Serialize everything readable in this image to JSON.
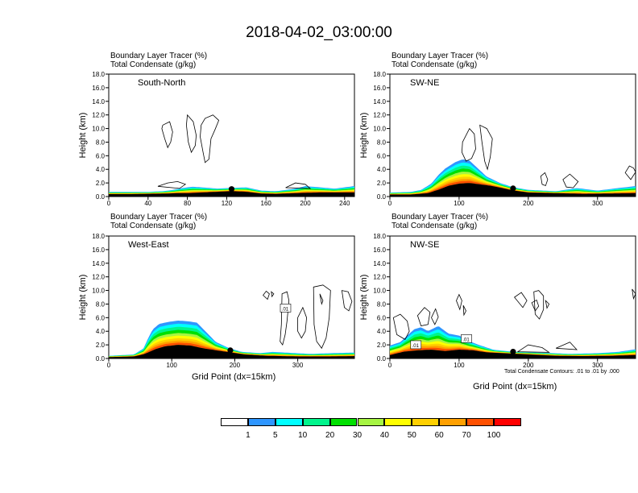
{
  "title": "2018-04-02_03:00:00",
  "header_line1": "Boundary Layer Tracer   (%)",
  "header_line2": "Total Condensate   (g/kg)",
  "ylabel": "Height (km)",
  "xlabel": "Grid Point (dx=15km)",
  "contour_note": "Total Condensate Contours: .01 to .01 by .000",
  "colorbar": {
    "labels": [
      "1",
      "5",
      "10",
      "20",
      "30",
      "40",
      "50",
      "60",
      "70",
      "100"
    ],
    "colors": [
      "#ffffff",
      "#2e96ff",
      "#00ffff",
      "#00f58c",
      "#00e000",
      "#a6f542",
      "#ffff00",
      "#ffd000",
      "#ffa000",
      "#ff5000",
      "#ff0000"
    ]
  },
  "chart_data": [
    {
      "type": "heatmap",
      "label": "South-North",
      "xlim": [
        0,
        250
      ],
      "ylim": [
        0,
        18
      ],
      "xticks": [
        0,
        40,
        80,
        120,
        160,
        200,
        240
      ],
      "yticks": [
        "0.0",
        "2.0",
        "4.0",
        "6.0",
        "8.0",
        "10.0",
        "12.0",
        "14.0",
        "16.0",
        "18.0"
      ],
      "marker_x": 125,
      "terrain": [
        [
          0,
          0.35
        ],
        [
          20,
          0.35
        ],
        [
          40,
          0.4
        ],
        [
          60,
          0.45
        ],
        [
          70,
          0.5
        ],
        [
          80,
          0.5
        ],
        [
          95,
          0.6
        ],
        [
          110,
          0.7
        ],
        [
          125,
          0.8
        ],
        [
          140,
          0.7
        ],
        [
          155,
          0.45
        ],
        [
          170,
          0.4
        ],
        [
          180,
          0.45
        ],
        [
          190,
          0.5
        ],
        [
          200,
          0.55
        ],
        [
          215,
          0.6
        ],
        [
          230,
          0.6
        ],
        [
          250,
          0.6
        ]
      ],
      "tracer_top": [
        [
          0,
          0.7
        ],
        [
          20,
          0.7
        ],
        [
          40,
          0.7
        ],
        [
          55,
          0.8
        ],
        [
          65,
          1.0
        ],
        [
          75,
          1.3
        ],
        [
          85,
          1.5
        ],
        [
          95,
          1.4
        ],
        [
          110,
          1.2
        ],
        [
          125,
          1.3
        ],
        [
          140,
          1.4
        ],
        [
          155,
          0.9
        ],
        [
          170,
          0.8
        ],
        [
          180,
          1.0
        ],
        [
          190,
          1.2
        ],
        [
          200,
          1.6
        ],
        [
          215,
          1.4
        ],
        [
          230,
          1.2
        ],
        [
          250,
          1.6
        ]
      ],
      "clouds": [
        [
          [
            55,
            10.5
          ],
          [
            62,
            11.0
          ],
          [
            65,
            9.5
          ],
          [
            63,
            8.0
          ],
          [
            60,
            7.2
          ],
          [
            57,
            8.5
          ],
          [
            54,
            10.0
          ]
        ],
        [
          [
            80,
            12
          ],
          [
            86,
            11
          ],
          [
            89,
            9
          ],
          [
            88,
            7.5
          ],
          [
            84,
            6.5
          ],
          [
            81,
            8
          ],
          [
            79,
            10.5
          ]
        ],
        [
          [
            94,
            10.5
          ],
          [
            98,
            11.5
          ],
          [
            106,
            12
          ],
          [
            112,
            11.2
          ],
          [
            108,
            9.8
          ],
          [
            104,
            8.5
          ],
          [
            102,
            5.5
          ],
          [
            98,
            5.0
          ],
          [
            96,
            6.5
          ],
          [
            93,
            8.8
          ]
        ],
        [
          [
            50,
            1.5
          ],
          [
            60,
            2.0
          ],
          [
            70,
            2.2
          ],
          [
            78,
            1.8
          ],
          [
            72,
            1.2
          ]
        ],
        [
          [
            180,
            1.3
          ],
          [
            190,
            2.0
          ],
          [
            200,
            1.8
          ],
          [
            205,
            1.2
          ]
        ]
      ]
    },
    {
      "type": "heatmap",
      "label": "SW-NE",
      "xlim": [
        0,
        355
      ],
      "ylim": [
        0,
        18
      ],
      "xticks": [
        0,
        100,
        200,
        300
      ],
      "yticks": [
        "0.0",
        "2.0",
        "4.0",
        "6.0",
        "8.0",
        "10.0",
        "12.0",
        "14.0",
        "16.0",
        "18.0"
      ],
      "marker_x": 178,
      "terrain": [
        [
          0,
          0.3
        ],
        [
          30,
          0.3
        ],
        [
          55,
          0.5
        ],
        [
          70,
          1.0
        ],
        [
          85,
          1.6
        ],
        [
          100,
          1.9
        ],
        [
          115,
          2.0
        ],
        [
          130,
          1.8
        ],
        [
          145,
          1.6
        ],
        [
          160,
          1.3
        ],
        [
          178,
          0.9
        ],
        [
          200,
          0.6
        ],
        [
          240,
          0.5
        ],
        [
          280,
          0.4
        ],
        [
          320,
          0.45
        ],
        [
          355,
          0.5
        ]
      ],
      "tracer_top": [
        [
          0,
          0.6
        ],
        [
          30,
          0.7
        ],
        [
          45,
          1.0
        ],
        [
          60,
          2.0
        ],
        [
          70,
          3.3
        ],
        [
          80,
          4.3
        ],
        [
          95,
          5.3
        ],
        [
          105,
          5.7
        ],
        [
          115,
          5.5
        ],
        [
          128,
          4.2
        ],
        [
          140,
          3.0
        ],
        [
          160,
          2.0
        ],
        [
          178,
          1.4
        ],
        [
          200,
          1.0
        ],
        [
          240,
          0.8
        ],
        [
          270,
          1.3
        ],
        [
          300,
          0.9
        ],
        [
          330,
          1.3
        ],
        [
          355,
          1.6
        ]
      ],
      "clouds": [
        [
          [
            105,
            8
          ],
          [
            115,
            10
          ],
          [
            122,
            9.2
          ],
          [
            124,
            7
          ],
          [
            118,
            5.6
          ],
          [
            110,
            5.2
          ],
          [
            104,
            6.5
          ]
        ],
        [
          [
            130,
            10.5
          ],
          [
            140,
            10.0
          ],
          [
            148,
            8.5
          ],
          [
            145,
            5.8
          ],
          [
            141,
            4.0
          ],
          [
            137,
            5.2
          ],
          [
            133,
            8.0
          ]
        ],
        [
          [
            218,
            3.0
          ],
          [
            224,
            3.5
          ],
          [
            228,
            2.5
          ],
          [
            225,
            1.6
          ],
          [
            220,
            1.8
          ]
        ],
        [
          [
            250,
            2.5
          ],
          [
            260,
            3.3
          ],
          [
            272,
            2.2
          ],
          [
            265,
            1.3
          ],
          [
            255,
            1.4
          ]
        ],
        [
          [
            340,
            3.5
          ],
          [
            346,
            4.5
          ],
          [
            352,
            4.2
          ],
          [
            355,
            3.6
          ],
          [
            348,
            2.5
          ]
        ]
      ]
    },
    {
      "type": "heatmap",
      "label": "West-East",
      "xlim": [
        0,
        390
      ],
      "ylim": [
        0,
        18
      ],
      "xticks": [
        0,
        100,
        200,
        300
      ],
      "yticks": [
        "0.0",
        "2.0",
        "4.0",
        "6.0",
        "8.0",
        "10.0",
        "12.0",
        "14.0",
        "16.0",
        "18.0"
      ],
      "marker_x": 193,
      "annotation": ".01",
      "terrain": [
        [
          0,
          0.2
        ],
        [
          40,
          0.3
        ],
        [
          55,
          0.6
        ],
        [
          65,
          1.0
        ],
        [
          75,
          1.4
        ],
        [
          90,
          1.8
        ],
        [
          110,
          2.0
        ],
        [
          130,
          1.9
        ],
        [
          150,
          1.5
        ],
        [
          170,
          1.2
        ],
        [
          193,
          0.9
        ],
        [
          215,
          0.6
        ],
        [
          250,
          0.4
        ],
        [
          300,
          0.3
        ],
        [
          350,
          0.3
        ],
        [
          390,
          0.35
        ]
      ],
      "tracer_top": [
        [
          0,
          0.4
        ],
        [
          40,
          0.6
        ],
        [
          55,
          1.5
        ],
        [
          62,
          3.0
        ],
        [
          70,
          4.5
        ],
        [
          80,
          5.3
        ],
        [
          95,
          5.6
        ],
        [
          110,
          5.8
        ],
        [
          125,
          5.7
        ],
        [
          140,
          5.5
        ],
        [
          155,
          4.0
        ],
        [
          170,
          2.5
        ],
        [
          190,
          1.6
        ],
        [
          210,
          1.0
        ],
        [
          240,
          0.8
        ],
        [
          260,
          1.0
        ],
        [
          280,
          0.9
        ],
        [
          320,
          0.7
        ],
        [
          350,
          0.8
        ],
        [
          390,
          0.9
        ]
      ],
      "clouds": [
        [
          [
            245,
            9.3
          ],
          [
            250,
            9.9
          ],
          [
            255,
            9.5
          ],
          [
            252,
            8.7
          ]
        ],
        [
          [
            258,
            9.8
          ],
          [
            262,
            9.5
          ],
          [
            259,
            9.1
          ]
        ],
        [
          [
            275,
            9.5
          ],
          [
            283,
            9.8
          ],
          [
            286,
            8.5
          ],
          [
            283,
            5.5
          ],
          [
            280,
            3.5
          ],
          [
            276,
            2.0
          ],
          [
            272,
            2.5
          ],
          [
            274,
            5.0
          ]
        ],
        [
          [
            300,
            6.0
          ],
          [
            308,
            7.5
          ],
          [
            314,
            6.0
          ],
          [
            312,
            4.0
          ],
          [
            306,
            3.0
          ],
          [
            300,
            4.0
          ]
        ],
        [
          [
            325,
            10.5
          ],
          [
            340,
            10.8
          ],
          [
            352,
            10
          ],
          [
            350,
            6.0
          ],
          [
            345,
            3.0
          ],
          [
            338,
            1.5
          ],
          [
            330,
            2.5
          ],
          [
            326,
            5
          ]
        ],
        [
          [
            335,
            9.5
          ],
          [
            340,
            8.5
          ],
          [
            338,
            8.0
          ]
        ],
        [
          [
            370,
            10.0
          ],
          [
            380,
            9.8
          ],
          [
            386,
            8.4
          ],
          [
            381,
            7.0
          ],
          [
            374,
            7.5
          ]
        ]
      ]
    },
    {
      "type": "heatmap",
      "label": "NW-SE",
      "xlim": [
        0,
        355
      ],
      "ylim": [
        0,
        18
      ],
      "xticks": [
        0,
        100,
        200,
        300
      ],
      "yticks": [
        "0.0",
        "2.0",
        "4.0",
        "6.0",
        "8.0",
        "10.0",
        "12.0",
        "14.0",
        "16.0",
        "18.0"
      ],
      "marker_x": 178,
      "annotations": [
        ".01",
        ".01"
      ],
      "terrain": [
        [
          0,
          0.5
        ],
        [
          20,
          1.0
        ],
        [
          40,
          1.2
        ],
        [
          60,
          1.3
        ],
        [
          80,
          1.1
        ],
        [
          100,
          1.3
        ],
        [
          120,
          1.2
        ],
        [
          140,
          0.9
        ],
        [
          160,
          0.8
        ],
        [
          178,
          0.7
        ],
        [
          200,
          0.6
        ],
        [
          240,
          0.4
        ],
        [
          280,
          0.35
        ],
        [
          320,
          0.4
        ],
        [
          355,
          0.5
        ]
      ],
      "tracer_top": [
        [
          0,
          2.0
        ],
        [
          15,
          2.5
        ],
        [
          25,
          3.5
        ],
        [
          35,
          4.5
        ],
        [
          45,
          4.8
        ],
        [
          55,
          4.2
        ],
        [
          70,
          5.0
        ],
        [
          85,
          3.8
        ],
        [
          100,
          3.5
        ],
        [
          115,
          2.6
        ],
        [
          130,
          2.0
        ],
        [
          150,
          1.3
        ],
        [
          178,
          1.0
        ],
        [
          210,
          0.9
        ],
        [
          260,
          0.7
        ],
        [
          300,
          0.8
        ],
        [
          330,
          1.0
        ],
        [
          355,
          1.4
        ]
      ],
      "clouds": [
        [
          [
            5,
            6
          ],
          [
            15,
            6.5
          ],
          [
            25,
            5.5
          ],
          [
            28,
            4.0
          ],
          [
            22,
            2.8
          ],
          [
            10,
            3.5
          ]
        ],
        [
          [
            40,
            6.3
          ],
          [
            50,
            7.5
          ],
          [
            58,
            6.8
          ],
          [
            55,
            5.0
          ],
          [
            45,
            4.8
          ]
        ],
        [
          [
            60,
            6.0
          ],
          [
            66,
            7.3
          ],
          [
            70,
            6.1
          ],
          [
            65,
            5.0
          ]
        ],
        [
          [
            96,
            8.5
          ],
          [
            100,
            9.4
          ],
          [
            104,
            8.5
          ],
          [
            101,
            7.2
          ]
        ],
        [
          [
            106,
            7.8
          ],
          [
            110,
            7.0
          ],
          [
            107,
            6.4
          ]
        ],
        [
          [
            180,
            9.0
          ],
          [
            190,
            9.7
          ],
          [
            198,
            8.5
          ],
          [
            192,
            7.5
          ]
        ],
        [
          [
            205,
            8.2
          ],
          [
            212,
            8.6
          ],
          [
            215,
            7.7
          ],
          [
            210,
            7.0
          ]
        ],
        [
          [
            208,
            9.8
          ],
          [
            215,
            10.0
          ],
          [
            222,
            9.2
          ],
          [
            222,
            7.2
          ],
          [
            216,
            5.8
          ],
          [
            210,
            6.5
          ]
        ],
        [
          [
            225,
            8.5
          ],
          [
            230,
            8.0
          ],
          [
            227,
            7.4
          ]
        ],
        [
          [
            355,
            9.5
          ],
          [
            352,
            8.8
          ],
          [
            350,
            10.2
          ]
        ],
        [
          [
            185,
            1.0
          ],
          [
            200,
            2.0
          ],
          [
            220,
            1.6
          ],
          [
            230,
            0.9
          ]
        ],
        [
          [
            240,
            1.5
          ],
          [
            260,
            2.4
          ],
          [
            270,
            1.3
          ]
        ]
      ]
    }
  ]
}
